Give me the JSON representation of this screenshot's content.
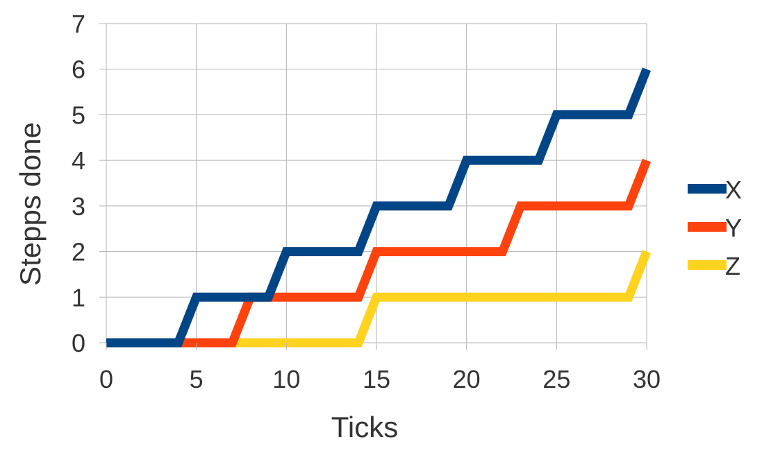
{
  "chart_data": {
    "type": "line",
    "title": "",
    "xlabel": "Ticks",
    "ylabel": "Stepps done",
    "xlim": [
      0,
      30
    ],
    "ylim": [
      0,
      7
    ],
    "xticks": [
      "0",
      "5",
      "10",
      "15",
      "20",
      "25",
      "30"
    ],
    "yticks": [
      "0",
      "1",
      "2",
      "3",
      "4",
      "5",
      "6",
      "7"
    ],
    "grid": true,
    "legend_position": "right",
    "series": [
      {
        "name": "X",
        "color": "#004586",
        "points": [
          [
            0,
            0
          ],
          [
            4,
            0
          ],
          [
            5,
            1
          ],
          [
            9,
            1
          ],
          [
            10,
            2
          ],
          [
            14,
            2
          ],
          [
            15,
            3
          ],
          [
            19,
            3
          ],
          [
            20,
            4
          ],
          [
            24,
            4
          ],
          [
            25,
            5
          ],
          [
            29,
            5
          ],
          [
            30,
            6
          ]
        ]
      },
      {
        "name": "Y",
        "color": "#ff420e",
        "points": [
          [
            0,
            0
          ],
          [
            7,
            0
          ],
          [
            8,
            1
          ],
          [
            14,
            1
          ],
          [
            15,
            2
          ],
          [
            22,
            2
          ],
          [
            23,
            3
          ],
          [
            29,
            3
          ],
          [
            30,
            4
          ]
        ]
      },
      {
        "name": "Z",
        "color": "#ffd320",
        "points": [
          [
            0,
            0
          ],
          [
            14,
            0
          ],
          [
            15,
            1
          ],
          [
            29,
            1
          ],
          [
            30,
            2
          ]
        ]
      }
    ]
  }
}
